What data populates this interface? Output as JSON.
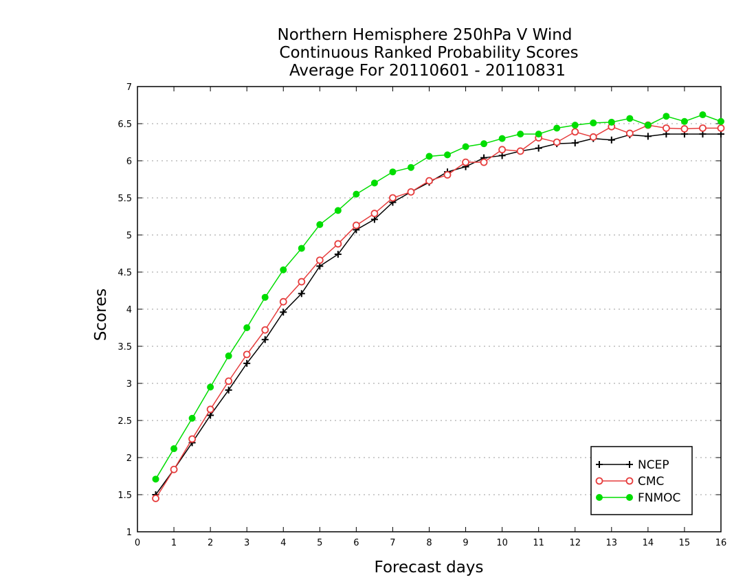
{
  "chart_data": {
    "type": "line",
    "title": [
      "Northern Hemisphere 250hPa V Wind",
      "Continuous Ranked Probability Scores",
      "Average For 20110601 - 20110831"
    ],
    "xlabel": "Forecast days",
    "ylabel": "Scores",
    "xlim": [
      0,
      16
    ],
    "ylim": [
      1,
      7
    ],
    "xticks": [
      "0",
      "1",
      "2",
      "3",
      "4",
      "5",
      "6",
      "7",
      "8",
      "9",
      "10",
      "11",
      "12",
      "13",
      "14",
      "15",
      "16"
    ],
    "yticks": [
      "1",
      "1.5",
      "2",
      "2.5",
      "3",
      "3.5",
      "4",
      "4.5",
      "5",
      "5.5",
      "6",
      "6.5",
      "7"
    ],
    "grid": "horizontal-dotted",
    "legend_position": "bottom-right",
    "x": [
      0.5,
      1,
      1.5,
      2,
      2.5,
      3,
      3.5,
      4,
      4.5,
      5,
      5.5,
      6,
      6.5,
      7,
      7.5,
      8,
      8.5,
      9,
      9.5,
      10,
      10.5,
      11,
      11.5,
      12,
      12.5,
      13,
      13.5,
      14,
      14.5,
      15,
      15.5,
      16
    ],
    "series": [
      {
        "name": "NCEP",
        "color": "#000000",
        "marker": "plus",
        "values": [
          1.5,
          1.84,
          2.2,
          2.57,
          2.91,
          3.27,
          3.59,
          3.96,
          4.21,
          4.58,
          4.74,
          5.07,
          5.21,
          5.44,
          5.58,
          5.71,
          5.85,
          5.92,
          6.04,
          6.07,
          6.13,
          6.17,
          6.23,
          6.24,
          6.3,
          6.28,
          6.35,
          6.33,
          6.36,
          6.36,
          6.36,
          6.36
        ]
      },
      {
        "name": "CMC",
        "color": "#e63c3c",
        "marker": "open-circle",
        "values": [
          1.45,
          1.84,
          2.25,
          2.65,
          3.03,
          3.39,
          3.72,
          4.1,
          4.37,
          4.66,
          4.88,
          5.13,
          5.29,
          5.5,
          5.58,
          5.73,
          5.81,
          5.98,
          5.98,
          6.15,
          6.13,
          6.31,
          6.25,
          6.39,
          6.32,
          6.46,
          6.37,
          6.48,
          6.44,
          6.43,
          6.44,
          6.44
        ]
      },
      {
        "name": "FNMOC",
        "color": "#00dd00",
        "marker": "filled-circle",
        "values": [
          1.71,
          2.12,
          2.53,
          2.95,
          3.37,
          3.75,
          4.16,
          4.53,
          4.82,
          5.14,
          5.33,
          5.55,
          5.7,
          5.85,
          5.91,
          6.06,
          6.08,
          6.19,
          6.23,
          6.3,
          6.36,
          6.36,
          6.44,
          6.48,
          6.51,
          6.52,
          6.57,
          6.48,
          6.6,
          6.53,
          6.62,
          6.53
        ]
      }
    ]
  }
}
